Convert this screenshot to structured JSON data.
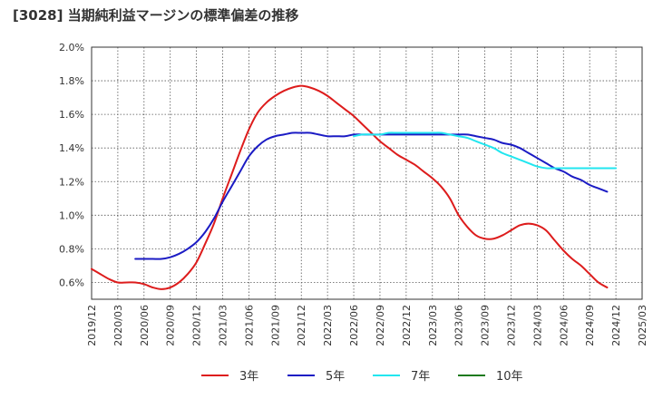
{
  "chart_data": {
    "type": "line",
    "title": "[3028]  当期純利益マージンの標準偏差の推移",
    "xlabel": "",
    "ylabel": "",
    "ylim": [
      0.5,
      2.0
    ],
    "y_ticks": [
      0.6,
      0.8,
      1.0,
      1.2,
      1.4,
      1.6,
      1.8,
      2.0
    ],
    "y_tick_labels": [
      "0.6%",
      "0.8%",
      "1.0%",
      "1.2%",
      "1.4%",
      "1.6%",
      "1.8%",
      "2.0%"
    ],
    "x_ticks": [
      "2019/12",
      "2020/03",
      "2020/06",
      "2020/09",
      "2020/12",
      "2021/03",
      "2021/06",
      "2021/09",
      "2021/12",
      "2022/03",
      "2022/06",
      "2022/09",
      "2022/12",
      "2023/03",
      "2023/06",
      "2023/09",
      "2023/12",
      "2024/03",
      "2024/06",
      "2024/09",
      "2024/12",
      "2025/03"
    ],
    "grid": true,
    "legend_position": "bottom",
    "series": [
      {
        "name": "3年",
        "color": "#dd1c1c",
        "points": [
          [
            "2019/12",
            0.68
          ],
          [
            "2020/01",
            0.65
          ],
          [
            "2020/02",
            0.62
          ],
          [
            "2020/03",
            0.6
          ],
          [
            "2020/04",
            0.6
          ],
          [
            "2020/05",
            0.6
          ],
          [
            "2020/06",
            0.59
          ],
          [
            "2020/07",
            0.57
          ],
          [
            "2020/08",
            0.56
          ],
          [
            "2020/09",
            0.57
          ],
          [
            "2020/10",
            0.6
          ],
          [
            "2020/11",
            0.65
          ],
          [
            "2020/12",
            0.72
          ],
          [
            "2021/01",
            0.83
          ],
          [
            "2021/02",
            0.95
          ],
          [
            "2021/03",
            1.1
          ],
          [
            "2021/04",
            1.24
          ],
          [
            "2021/05",
            1.38
          ],
          [
            "2021/06",
            1.51
          ],
          [
            "2021/07",
            1.61
          ],
          [
            "2021/08",
            1.67
          ],
          [
            "2021/09",
            1.71
          ],
          [
            "2021/10",
            1.74
          ],
          [
            "2021/11",
            1.76
          ],
          [
            "2021/12",
            1.77
          ],
          [
            "2022/01",
            1.76
          ],
          [
            "2022/02",
            1.74
          ],
          [
            "2022/03",
            1.71
          ],
          [
            "2022/04",
            1.67
          ],
          [
            "2022/05",
            1.63
          ],
          [
            "2022/06",
            1.59
          ],
          [
            "2022/07",
            1.54
          ],
          [
            "2022/08",
            1.49
          ],
          [
            "2022/09",
            1.44
          ],
          [
            "2022/10",
            1.4
          ],
          [
            "2022/11",
            1.36
          ],
          [
            "2022/12",
            1.33
          ],
          [
            "2023/01",
            1.3
          ],
          [
            "2023/02",
            1.26
          ],
          [
            "2023/03",
            1.22
          ],
          [
            "2023/04",
            1.17
          ],
          [
            "2023/05",
            1.1
          ],
          [
            "2023/06",
            1.0
          ],
          [
            "2023/07",
            0.93
          ],
          [
            "2023/08",
            0.88
          ],
          [
            "2023/09",
            0.86
          ],
          [
            "2023/10",
            0.86
          ],
          [
            "2023/11",
            0.88
          ],
          [
            "2023/12",
            0.91
          ],
          [
            "2024/01",
            0.94
          ],
          [
            "2024/02",
            0.95
          ],
          [
            "2024/03",
            0.94
          ],
          [
            "2024/04",
            0.91
          ],
          [
            "2024/05",
            0.85
          ],
          [
            "2024/06",
            0.79
          ],
          [
            "2024/07",
            0.74
          ],
          [
            "2024/08",
            0.7
          ],
          [
            "2024/09",
            0.65
          ],
          [
            "2024/10",
            0.6
          ],
          [
            "2024/11",
            0.57
          ]
        ]
      },
      {
        "name": "5年",
        "color": "#1b1bc4",
        "points": [
          [
            "2020/05",
            0.74
          ],
          [
            "2020/06",
            0.74
          ],
          [
            "2020/07",
            0.74
          ],
          [
            "2020/08",
            0.74
          ],
          [
            "2020/09",
            0.75
          ],
          [
            "2020/10",
            0.77
          ],
          [
            "2020/11",
            0.8
          ],
          [
            "2020/12",
            0.84
          ],
          [
            "2021/01",
            0.9
          ],
          [
            "2021/02",
            0.98
          ],
          [
            "2021/03",
            1.08
          ],
          [
            "2021/04",
            1.17
          ],
          [
            "2021/05",
            1.26
          ],
          [
            "2021/06",
            1.35
          ],
          [
            "2021/07",
            1.41
          ],
          [
            "2021/08",
            1.45
          ],
          [
            "2021/09",
            1.47
          ],
          [
            "2021/10",
            1.48
          ],
          [
            "2021/11",
            1.49
          ],
          [
            "2021/12",
            1.49
          ],
          [
            "2022/01",
            1.49
          ],
          [
            "2022/02",
            1.48
          ],
          [
            "2022/03",
            1.47
          ],
          [
            "2022/04",
            1.47
          ],
          [
            "2022/05",
            1.47
          ],
          [
            "2022/06",
            1.48
          ],
          [
            "2022/07",
            1.48
          ],
          [
            "2022/08",
            1.48
          ],
          [
            "2022/09",
            1.48
          ],
          [
            "2022/10",
            1.48
          ],
          [
            "2022/11",
            1.48
          ],
          [
            "2022/12",
            1.48
          ],
          [
            "2023/01",
            1.48
          ],
          [
            "2023/02",
            1.48
          ],
          [
            "2023/03",
            1.48
          ],
          [
            "2023/04",
            1.48
          ],
          [
            "2023/05",
            1.48
          ],
          [
            "2023/06",
            1.48
          ],
          [
            "2023/07",
            1.48
          ],
          [
            "2023/08",
            1.47
          ],
          [
            "2023/09",
            1.46
          ],
          [
            "2023/10",
            1.45
          ],
          [
            "2023/11",
            1.43
          ],
          [
            "2023/12",
            1.42
          ],
          [
            "2024/01",
            1.4
          ],
          [
            "2024/02",
            1.37
          ],
          [
            "2024/03",
            1.34
          ],
          [
            "2024/04",
            1.31
          ],
          [
            "2024/05",
            1.28
          ],
          [
            "2024/06",
            1.26
          ],
          [
            "2024/07",
            1.23
          ],
          [
            "2024/08",
            1.21
          ],
          [
            "2024/09",
            1.18
          ],
          [
            "2024/10",
            1.16
          ],
          [
            "2024/11",
            1.14
          ]
        ]
      },
      {
        "name": "7年",
        "color": "#22e6ef",
        "points": [
          [
            "2022/06",
            1.47
          ],
          [
            "2022/07",
            1.48
          ],
          [
            "2022/08",
            1.48
          ],
          [
            "2022/09",
            1.48
          ],
          [
            "2022/10",
            1.49
          ],
          [
            "2022/11",
            1.49
          ],
          [
            "2022/12",
            1.49
          ],
          [
            "2023/01",
            1.49
          ],
          [
            "2023/02",
            1.49
          ],
          [
            "2023/03",
            1.49
          ],
          [
            "2023/04",
            1.49
          ],
          [
            "2023/05",
            1.48
          ],
          [
            "2023/06",
            1.47
          ],
          [
            "2023/07",
            1.46
          ],
          [
            "2023/08",
            1.44
          ],
          [
            "2023/09",
            1.42
          ],
          [
            "2023/10",
            1.4
          ],
          [
            "2023/11",
            1.37
          ],
          [
            "2023/12",
            1.35
          ],
          [
            "2024/01",
            1.33
          ],
          [
            "2024/02",
            1.31
          ],
          [
            "2024/03",
            1.29
          ],
          [
            "2024/04",
            1.28
          ],
          [
            "2024/05",
            1.28
          ],
          [
            "2024/06",
            1.28
          ],
          [
            "2024/07",
            1.28
          ],
          [
            "2024/08",
            1.28
          ],
          [
            "2024/09",
            1.28
          ],
          [
            "2024/10",
            1.28
          ],
          [
            "2024/11",
            1.28
          ],
          [
            "2024/12",
            1.28
          ]
        ]
      },
      {
        "name": "10年",
        "color": "#1e7a1e",
        "points": []
      }
    ]
  }
}
